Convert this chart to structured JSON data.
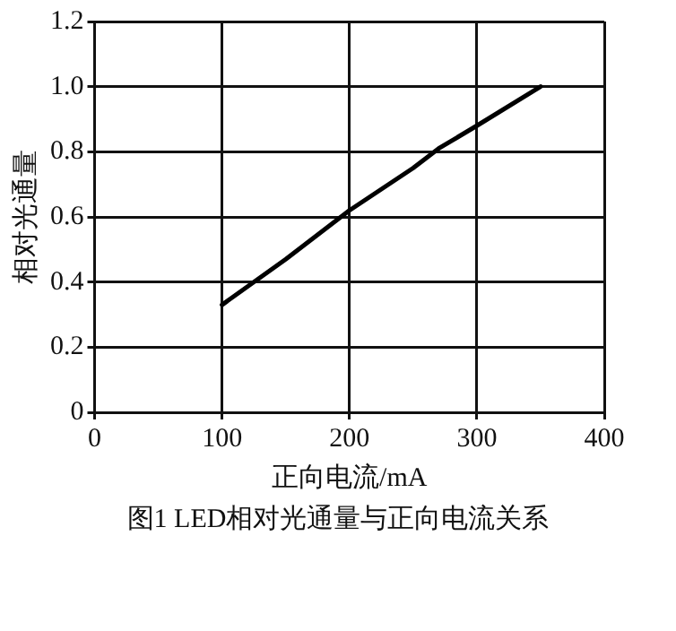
{
  "chart_data": {
    "type": "line",
    "xlabel": "正向电流/mA",
    "ylabel": "相对光通量",
    "annotations": [
      "图1 LED相对光通量与正向电流关系"
    ],
    "x": [
      100,
      150,
      200,
      250,
      270,
      300,
      350
    ],
    "series": [
      {
        "color": "#000000",
        "values": [
          0.33,
          0.47,
          0.62,
          0.75,
          0.81,
          0.88,
          1.0
        ]
      }
    ],
    "xlim": [
      0,
      400
    ],
    "xticks": [
      0,
      100,
      200,
      300,
      400
    ],
    "ylim": [
      0,
      1.2
    ],
    "yticks": [
      0,
      0.2,
      0.4,
      0.6,
      0.8,
      {
        "value": 1,
        "label": "1.0"
      },
      1.2
    ],
    "grid": true,
    "legend": false,
    "marker": "none",
    "line_style": "solid"
  }
}
